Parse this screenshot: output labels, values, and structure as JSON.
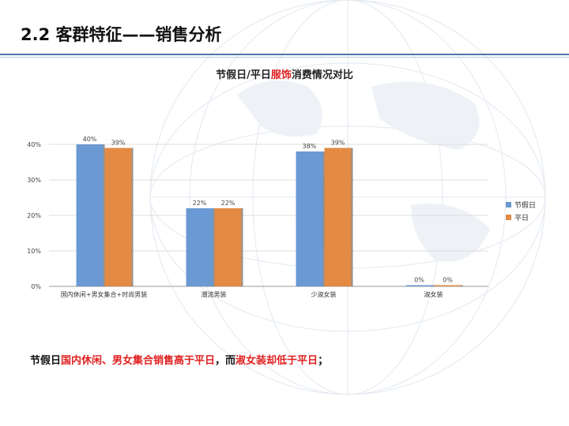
{
  "slide": {
    "title": "2.2 客群特征——销售分析"
  },
  "chart_title": {
    "before": "节假日/平日",
    "highlight": "服饰",
    "after": "消费情况对比"
  },
  "chart_data": {
    "type": "bar",
    "categories": [
      "国内休闲+男女集合+时尚男装",
      "潮流男装",
      "少淑女装",
      "淑女装"
    ],
    "series": [
      {
        "name": "节假日",
        "values": [
          40,
          22,
          38,
          0
        ],
        "labels": [
          "40%",
          "22%",
          "38%",
          "0%"
        ],
        "color": "#6a99d3"
      },
      {
        "name": "平日",
        "values": [
          39,
          22,
          39,
          0
        ],
        "labels": [
          "39%",
          "22%",
          "39%",
          "0%"
        ],
        "color": "#e38a45"
      }
    ],
    "ylim": [
      0,
      40
    ],
    "yticks": [
      0,
      10,
      20,
      30,
      40
    ],
    "ytick_labels": [
      "0%",
      "10%",
      "20%",
      "30%",
      "40%"
    ],
    "grid": true,
    "legend": "right"
  },
  "footnote": {
    "part1": "节假日",
    "part2": "国内休闲、男女集合销售高于平日",
    "part3": "，而",
    "part4": "淑女装却低于平日",
    "part5": "；"
  }
}
